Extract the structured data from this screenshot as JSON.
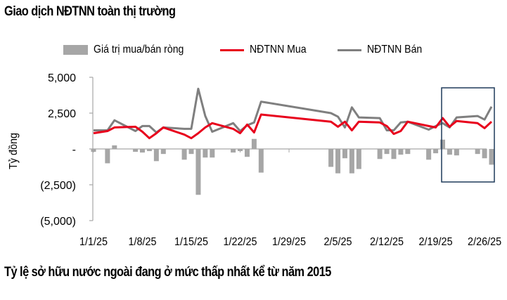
{
  "title": "Giao dịch NĐTNN toàn thị trường",
  "subtitle": "Tỷ lệ sở hữu nước ngoài đang ở mức thấp nhất kể từ năm 2015",
  "legend": {
    "bar": "Giá trị mua/bán ròng",
    "buy": "NĐTNN Mua",
    "sell": "NĐTNN Bán"
  },
  "colors": {
    "bar": "#a6a6a6",
    "buy": "#e8001c",
    "sell": "#7f7f7f",
    "axis": "#a6a6a6",
    "highlight_box": "#1f3a5a"
  },
  "chart_data": {
    "type": "bar+line",
    "title": "Giao dịch NĐTNN toàn thị trường",
    "xlabel": "",
    "ylabel": "Tỷ đồng",
    "ylim": [
      -5000,
      5000
    ],
    "yticks": [
      5000,
      2500,
      0,
      -2500,
      -5000
    ],
    "ytick_labels": [
      "5,000",
      "2,500",
      "-",
      "(2,500)",
      "(5,000)"
    ],
    "xtick_labels": [
      "1/1/25",
      "1/8/25",
      "1/15/25",
      "1/22/25",
      "1/29/25",
      "2/5/25",
      "2/12/25",
      "2/19/25",
      "2/26/25"
    ],
    "grid": false,
    "legend_position": "top",
    "day_offsets": [
      0,
      2,
      3,
      6,
      7,
      8,
      9,
      10,
      13,
      14,
      15,
      16,
      17,
      20,
      21,
      22,
      23,
      24,
      34,
      35,
      36,
      37,
      38,
      41,
      42,
      43,
      44,
      45,
      48,
      49,
      50,
      51,
      52,
      55,
      56,
      57
    ],
    "x": [
      "1/2/25",
      "1/3/25",
      "1/6/25",
      "1/7/25",
      "1/8/25",
      "1/9/25",
      "1/10/25",
      "1/13/25",
      "1/14/25",
      "1/15/25",
      "1/16/25",
      "1/17/25",
      "1/20/25",
      "1/21/25",
      "1/22/25",
      "1/23/25",
      "1/24/25",
      "2/3/25",
      "2/4/25",
      "2/5/25",
      "2/6/25",
      "2/7/25",
      "2/10/25",
      "2/11/25",
      "2/12/25",
      "2/13/25",
      "2/14/25",
      "2/17/25",
      "2/18/25",
      "2/19/25",
      "2/20/25",
      "2/21/25",
      "2/24/25",
      "2/25/25",
      "2/26/25",
      "2/27/25"
    ],
    "series": [
      {
        "name": "NĐTNN Mua",
        "type": "line",
        "values": [
          1100,
          1250,
          1500,
          1550,
          1200,
          750,
          1100,
          1500,
          1000,
          750,
          1100,
          1500,
          1800,
          1400,
          1100,
          1700,
          1150,
          2400,
          1900,
          1550,
          1900,
          1300,
          1900,
          1850,
          1600,
          1050,
          1250,
          1900,
          1600,
          1500,
          2150,
          1550,
          1950,
          1800,
          1450,
          1900
        ]
      },
      {
        "name": "NĐTNN Bán",
        "type": "line",
        "values": [
          1300,
          1300,
          2000,
          1250,
          1600,
          1600,
          1150,
          1500,
          1400,
          1400,
          4200,
          2300,
          1200,
          1800,
          1250,
          1650,
          1850,
          3300,
          2500,
          2250,
          1500,
          2900,
          2200,
          2150,
          1300,
          1300,
          1850,
          1900,
          1350,
          1600,
          1800,
          1500,
          2200,
          2300,
          2050,
          2950
        ]
      },
      {
        "name": "Giá trị mua/bán ròng",
        "type": "bar",
        "values": [
          -200,
          -1000,
          250,
          -200,
          -250,
          -150,
          -850,
          -350,
          -750,
          -350,
          -3200,
          -600,
          -600,
          -250,
          -150,
          -550,
          700,
          -1650,
          -1250,
          -1700,
          -650,
          -1700,
          -1400,
          -700,
          -350,
          -700,
          -400,
          -350,
          -750,
          -300,
          650,
          -400,
          -450,
          -350,
          -650,
          -1100
        ]
      }
    ],
    "highlight_region": {
      "from": "2/21/25",
      "to": "2/27/25"
    }
  }
}
